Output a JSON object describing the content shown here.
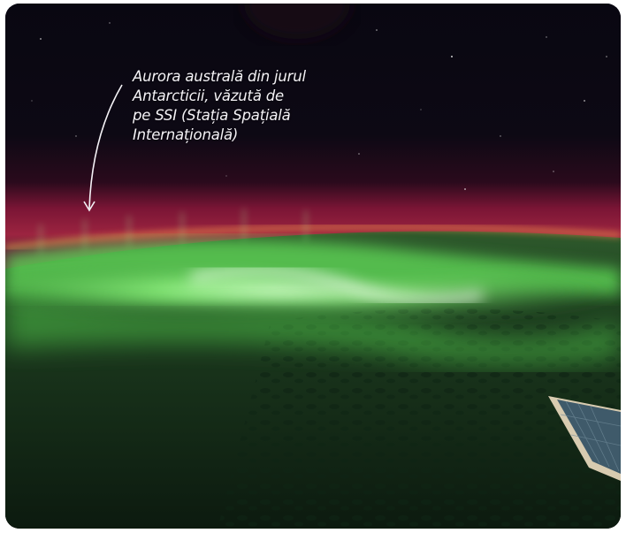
{
  "caption": {
    "text": "Aurora australă din jurul\nAntarcticii, văzută de\npe SSI (Stația Spațială\nInternațională)"
  },
  "colors": {
    "space": "#07060d",
    "aurora_green": "#63e05a",
    "aurora_red": "#a0173c",
    "caption_text": "#f4f2f6"
  },
  "icons": [
    "arrow-pointer-icon",
    "solar-panel-icon"
  ]
}
